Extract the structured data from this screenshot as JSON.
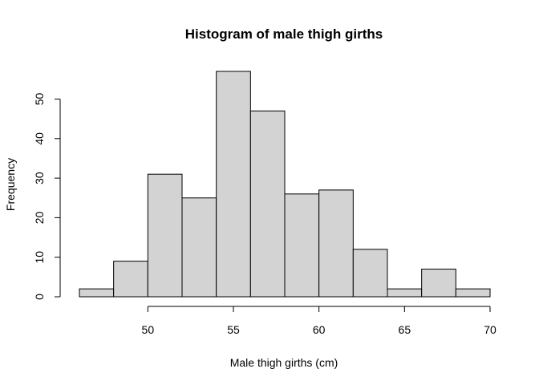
{
  "chart_data": {
    "type": "bar",
    "title": "Histogram of male thigh girths",
    "xlabel": "Male thigh girths (cm)",
    "ylabel": "Frequency",
    "bin_width": 2,
    "bin_edges": [
      46,
      48,
      50,
      52,
      54,
      56,
      58,
      60,
      62,
      64,
      66,
      68,
      70
    ],
    "values": [
      2,
      9,
      31,
      25,
      57,
      47,
      26,
      27,
      12,
      2,
      7,
      2
    ],
    "xticks": [
      50,
      55,
      60,
      65,
      70
    ],
    "yticks": [
      0,
      10,
      20,
      30,
      40,
      50
    ],
    "xlim": [
      46,
      70
    ],
    "ylim": [
      0,
      57
    ],
    "bar_color": "#d3d3d3",
    "grid": false,
    "legend": "none"
  }
}
